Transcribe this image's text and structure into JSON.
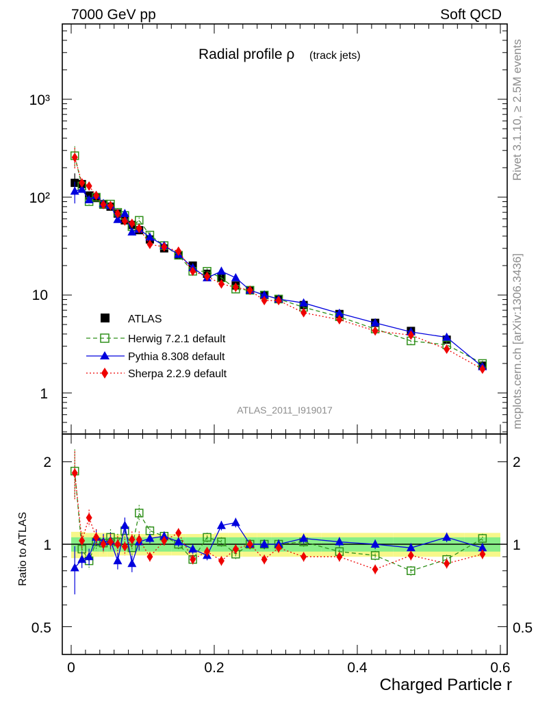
{
  "header": {
    "left": "7000 GeV pp",
    "right": "Soft QCD"
  },
  "side": {
    "rivet": "Rivet 3.1.10, ≥ 2.5M events",
    "mcplots": "mcplots.cern.ch [arXiv:1306.3436]"
  },
  "colors": {
    "data": "#000000",
    "herwig": "#2f8f1a",
    "pythia": "#0000dd",
    "sherpa": "#ee0000",
    "band_inner": "#88ee88",
    "band_outer": "#f7f78a"
  },
  "chart_data": [
    {
      "type": "scatter",
      "title": "Radial profile ρ",
      "title_suffix": "(track jets)",
      "watermark": "ATLAS_2011_I919017",
      "xlabel": "Charged Particle r",
      "ylabel": "",
      "yscale": "log",
      "xlim": [
        -0.013,
        0.6
      ],
      "ylim": [
        0.4,
        6000
      ],
      "ytick_labels": [
        "1",
        "10",
        "10²",
        "10³"
      ],
      "yticks": [
        1,
        10,
        100,
        1000
      ],
      "x": [
        0.005,
        0.015,
        0.025,
        0.035,
        0.045,
        0.055,
        0.065,
        0.075,
        0.085,
        0.095,
        0.11,
        0.13,
        0.15,
        0.17,
        0.19,
        0.21,
        0.23,
        0.25,
        0.27,
        0.29,
        0.325,
        0.375,
        0.425,
        0.475,
        0.525,
        0.575
      ],
      "series": [
        {
          "name": "ATLAS",
          "key": "data",
          "marker": "square",
          "line": "none",
          "values": [
            140,
            136,
            104,
            98,
            84,
            80,
            68,
            58,
            52,
            46,
            37,
            30,
            25.5,
            20,
            16.5,
            15,
            12.5,
            11.2,
            10,
            9.1,
            7.9,
            6.4,
            5.2,
            4.3,
            3.5,
            1.9
          ]
        },
        {
          "name": "Herwig 7.2.1 default",
          "key": "herwig",
          "marker": "open-square",
          "line": "dashed",
          "values": [
            265,
            130,
            90,
            100,
            85,
            85,
            70,
            65,
            50,
            58,
            41,
            32,
            25.5,
            17.5,
            17.5,
            15,
            11.5,
            11.2,
            10,
            9.1,
            7.5,
            6,
            4.5,
            3.4,
            3.1,
            2.0
          ]
        },
        {
          "name": "Pythia 8.308 default",
          "key": "pythia",
          "marker": "triangle",
          "line": "solid",
          "values": [
            115,
            120,
            94,
            104,
            86,
            82,
            59,
            68,
            44,
            47,
            39,
            32,
            26,
            19,
            15,
            17.5,
            15,
            11.2,
            10,
            9.1,
            8.3,
            6.5,
            5.2,
            4.2,
            3.7,
            1.85
          ]
        },
        {
          "name": "Sherpa 2.2.9 default",
          "key": "sherpa",
          "marker": "diamond",
          "line": "dotted",
          "values": [
            255,
            140,
            130,
            104,
            84,
            82,
            68,
            57,
            54,
            48,
            33,
            31,
            28,
            17.5,
            15.5,
            13,
            12,
            11.2,
            8.8,
            8.8,
            6.6,
            5.6,
            4.3,
            3.9,
            2.8,
            1.75
          ]
        }
      ],
      "legend": "top-left"
    },
    {
      "type": "scatter",
      "title": "",
      "xlabel": "Charged Particle r",
      "ylabel": "Ratio to ATLAS",
      "yscale": "log",
      "xlim": [
        -0.013,
        0.6
      ],
      "ylim": [
        0.4,
        2.5
      ],
      "yticks": [
        0.5,
        1,
        2
      ],
      "ytick_labels": [
        "0.5",
        "1",
        "2"
      ],
      "xticks": [
        0,
        0.2,
        0.4,
        0.6
      ],
      "xtick_labels": [
        "0",
        "0.2",
        "0.4",
        "0.6"
      ],
      "x": [
        0.005,
        0.015,
        0.025,
        0.035,
        0.045,
        0.055,
        0.065,
        0.075,
        0.085,
        0.095,
        0.11,
        0.13,
        0.15,
        0.17,
        0.19,
        0.21,
        0.23,
        0.25,
        0.27,
        0.29,
        0.325,
        0.375,
        0.425,
        0.475,
        0.525,
        0.575
      ],
      "bin_edges": [
        0,
        0.01,
        0.02,
        0.03,
        0.04,
        0.05,
        0.06,
        0.07,
        0.08,
        0.09,
        0.1,
        0.12,
        0.14,
        0.16,
        0.18,
        0.2,
        0.22,
        0.24,
        0.26,
        0.28,
        0.3,
        0.35,
        0.4,
        0.45,
        0.5,
        0.55,
        0.6
      ],
      "band_inner_halfwidth": [
        0.06,
        0.06,
        0.06,
        0.06,
        0.06,
        0.06,
        0.06,
        0.06,
        0.06,
        0.06,
        0.06,
        0.06,
        0.06,
        0.06,
        0.06,
        0.06,
        0.06,
        0.06,
        0.06,
        0.06,
        0.06,
        0.06,
        0.06,
        0.06,
        0.06,
        0.06
      ],
      "band_outer_halfwidth": [
        0.11,
        0.11,
        0.1,
        0.1,
        0.1,
        0.1,
        0.09,
        0.09,
        0.09,
        0.09,
        0.09,
        0.09,
        0.09,
        0.09,
        0.09,
        0.1,
        0.1,
        0.1,
        0.1,
        0.1,
        0.1,
        0.1,
        0.1,
        0.1,
        0.1,
        0.1
      ],
      "series": [
        {
          "name": "Herwig 7.2.1 default",
          "key": "herwig",
          "marker": "open-square",
          "line": "dashed",
          "values": [
            1.85,
            0.96,
            0.87,
            1.02,
            1.01,
            1.06,
            1.02,
            1.12,
            0.97,
            1.3,
            1.12,
            1.07,
            1.0,
            0.88,
            1.06,
            1.02,
            0.92,
            1.0,
            1.0,
            1.0,
            1.02,
            0.94,
            0.91,
            0.8,
            0.88,
            1.05
          ]
        },
        {
          "name": "Pythia 8.308 default",
          "key": "pythia",
          "marker": "triangle",
          "line": "solid",
          "values": [
            0.82,
            0.88,
            0.9,
            1.06,
            1.02,
            1.03,
            0.87,
            1.17,
            0.85,
            1.02,
            1.05,
            1.07,
            1.02,
            0.96,
            0.91,
            1.17,
            1.2,
            1.0,
            1.0,
            1.0,
            1.05,
            1.02,
            1.0,
            0.97,
            1.06,
            0.97
          ]
        },
        {
          "name": "Sherpa 2.2.9 default",
          "key": "sherpa",
          "marker": "diamond",
          "line": "dotted",
          "values": [
            1.82,
            1.03,
            1.25,
            1.06,
            1.0,
            1.02,
            1.0,
            0.98,
            1.04,
            1.04,
            0.9,
            1.03,
            1.1,
            0.88,
            0.94,
            0.87,
            0.96,
            1.0,
            0.88,
            0.97,
            0.9,
            0.9,
            0.81,
            0.91,
            0.85,
            0.92
          ]
        }
      ]
    }
  ]
}
